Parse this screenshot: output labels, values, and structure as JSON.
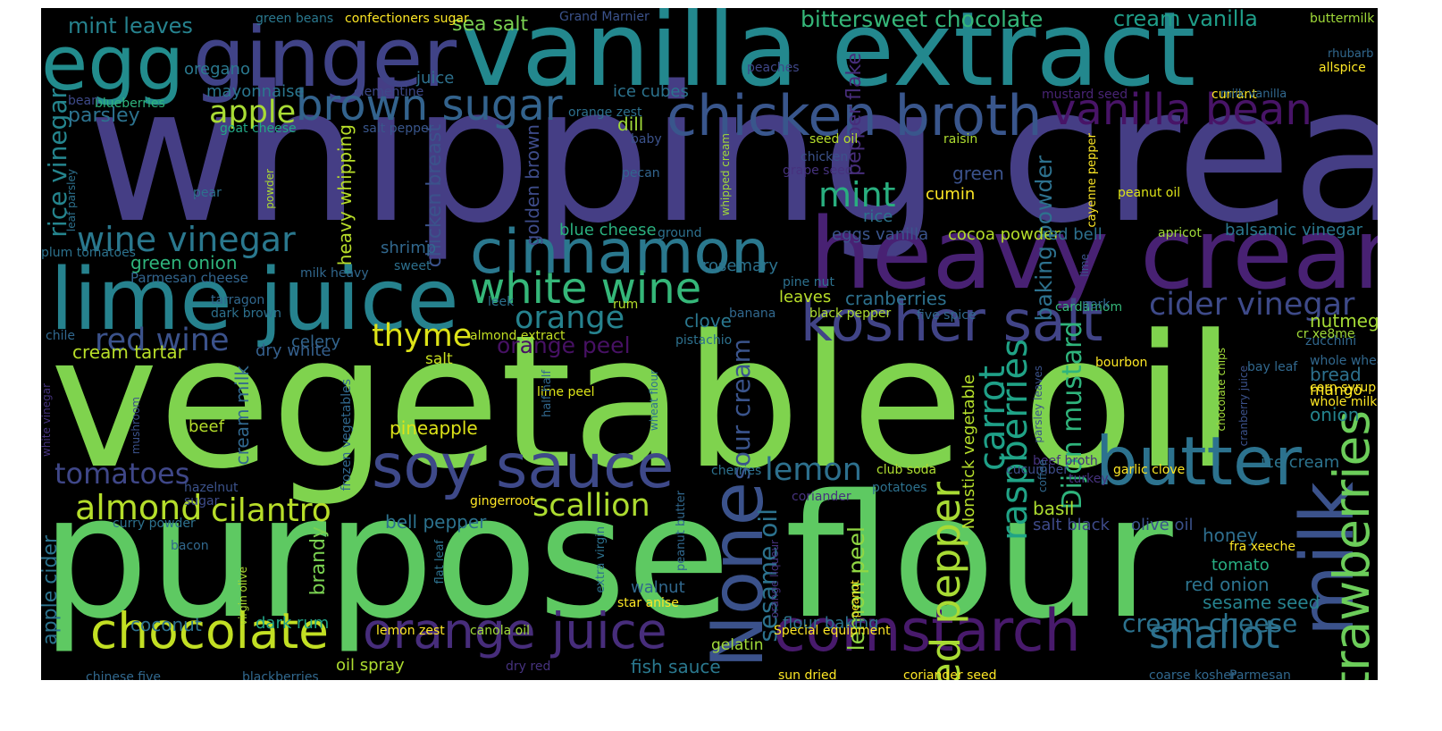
{
  "words": [
    {
      "text": "whipping cream",
      "color": "#453e85",
      "rot": 0
    },
    {
      "text": "vegetable oil",
      "color": "#7fd34e",
      "rot": 0
    },
    {
      "text": "purpose flour",
      "color": "#5ec962",
      "rot": 0
    },
    {
      "text": "vanilla extract",
      "color": "#23888e",
      "rot": 0
    },
    {
      "text": "heavy cream",
      "color": "#482173",
      "rot": 0
    },
    {
      "text": "lime juice",
      "color": "#26828e",
      "rot": 0
    },
    {
      "text": "ginger",
      "color": "#404387",
      "rot": 0
    },
    {
      "text": "egg",
      "color": "#228c8d",
      "rot": 0
    },
    {
      "text": "cinnamon",
      "color": "#2a788e",
      "rot": 0
    },
    {
      "text": "chicken broth",
      "color": "#39568c",
      "rot": 0
    },
    {
      "text": "kosher salt",
      "color": "#414487",
      "rot": 0
    },
    {
      "text": "butter",
      "color": "#2c728e",
      "rot": 0
    },
    {
      "text": "soy sauce",
      "color": "#3e4989",
      "rot": 0
    },
    {
      "text": "white wine",
      "color": "#35b779",
      "rot": 0
    },
    {
      "text": "orange juice",
      "color": "#472d7b",
      "rot": 0
    },
    {
      "text": "cornstarch",
      "color": "#481a6c",
      "rot": 0
    },
    {
      "text": "chocolate",
      "color": "#c2df23",
      "rot": 0
    },
    {
      "text": "brown sugar",
      "color": "#33638d",
      "rot": 0
    },
    {
      "text": "vanilla bean",
      "color": "#481467",
      "rot": 0
    },
    {
      "text": "milk",
      "color": "#3b528b",
      "rot": 90
    },
    {
      "text": "None",
      "color": "#3b528b",
      "rot": 90
    },
    {
      "text": "strawberries",
      "color": "#6ccd5a",
      "rot": 90
    },
    {
      "text": "wine vinegar",
      "color": "#2a788e",
      "rot": 0
    },
    {
      "text": "red wine",
      "color": "#3b528b",
      "rot": 0
    },
    {
      "text": "almond",
      "color": "#b5de2b",
      "rot": 0
    },
    {
      "text": "cilantro",
      "color": "#b8de29",
      "rot": 0
    },
    {
      "text": "scallion",
      "color": "#addc30",
      "rot": 0
    },
    {
      "text": "shallot",
      "color": "#2d708e",
      "rot": 0
    },
    {
      "text": "red pepper",
      "color": "#a8db34",
      "rot": 90
    },
    {
      "text": "raspberries",
      "color": "#20a386",
      "rot": 90
    },
    {
      "text": "apple",
      "color": "#a8db34",
      "rot": 0
    },
    {
      "text": "mint",
      "color": "#29af7f",
      "rot": 0
    },
    {
      "text": "orange",
      "color": "#26828e",
      "rot": 0
    },
    {
      "text": "thyme",
      "color": "#dde318",
      "rot": 0
    },
    {
      "text": "lemon",
      "color": "#2d708e",
      "rot": 0
    },
    {
      "text": "cider vinegar",
      "color": "#3e4a89",
      "rot": 0
    },
    {
      "text": "carrot",
      "color": "#1fa088",
      "rot": 90
    },
    {
      "text": "tomatoes",
      "color": "#3f4788",
      "rot": 0
    },
    {
      "text": "orange peel",
      "color": "#471164",
      "rot": 0
    },
    {
      "text": "sour cream",
      "color": "#3a548c",
      "rot": 90
    },
    {
      "text": "sesame oil",
      "color": "#2c728e",
      "rot": 90
    },
    {
      "text": "lemon peel",
      "color": "#90d743",
      "rot": 90
    },
    {
      "text": "Dijon mustard",
      "color": "#2fb47c",
      "rot": 90
    },
    {
      "text": "baking powder",
      "color": "#2d718e",
      "rot": 90
    },
    {
      "text": "cream cheese",
      "color": "#2c728e",
      "rot": 0
    },
    {
      "text": "bittersweet chocolate",
      "color": "#35b779",
      "rot": 0
    },
    {
      "text": "cream vanilla",
      "color": "#1f9e89",
      "rot": 0
    },
    {
      "text": "mint leaves",
      "color": "#26828e",
      "rot": 0
    },
    {
      "text": "sea salt",
      "color": "#7ad151",
      "rot": 0
    },
    {
      "text": "pepper flake",
      "color": "#472d7b",
      "rot": 90
    },
    {
      "text": "rice vinegar",
      "color": "#25858e",
      "rot": 90
    },
    {
      "text": "chicken breast",
      "color": "#3b528b",
      "rot": 90
    },
    {
      "text": "golden brown",
      "color": "#3e4c8a",
      "rot": 90
    },
    {
      "text": "heavy whipping",
      "color": "#b8de29",
      "rot": 90
    },
    {
      "text": "apple cider",
      "color": "#2c738e",
      "rot": 90
    },
    {
      "text": "brandy",
      "color": "#7ad151",
      "rot": 90
    },
    {
      "text": "cream milk",
      "color": "#31688e",
      "rot": 90
    },
    {
      "text": "parsley",
      "color": "#2c728e",
      "rot": 0
    },
    {
      "text": "dill",
      "color": "#a0da39",
      "rot": 0
    },
    {
      "text": "oregano",
      "color": "#2a788e",
      "rot": 0
    },
    {
      "text": "juice",
      "color": "#2d718e",
      "rot": 0
    },
    {
      "text": "mayonnaise",
      "color": "#2a768e",
      "rot": 0
    },
    {
      "text": "ice cubes",
      "color": "#2c738e",
      "rot": 0
    },
    {
      "text": "green",
      "color": "#3b528b",
      "rot": 0
    },
    {
      "text": "cumin",
      "color": "#fde725",
      "rot": 0
    },
    {
      "text": "rice",
      "color": "#2c738e",
      "rot": 0
    },
    {
      "text": "blue cheese",
      "color": "#2ab07f",
      "rot": 0
    },
    {
      "text": "cocoa powder",
      "color": "#b5de2b",
      "rot": 0
    },
    {
      "text": "eggs vanilla",
      "color": "#3a548c",
      "rot": 0
    },
    {
      "text": "green onion",
      "color": "#2fb47c",
      "rot": 0
    },
    {
      "text": "shrimp",
      "color": "#31688e",
      "rot": 0
    },
    {
      "text": "Parmesan cheese",
      "color": "#32658e",
      "rot": 0
    },
    {
      "text": "rosemary",
      "color": "#2c728e",
      "rot": 0
    },
    {
      "text": "leaves",
      "color": "#b8de29",
      "rot": 0
    },
    {
      "text": "cranberries",
      "color": "#2d718e",
      "rot": 0
    },
    {
      "text": "clove",
      "color": "#2a778e",
      "rot": 0
    },
    {
      "text": "celery",
      "color": "#32658e",
      "rot": 0
    },
    {
      "text": "dry white",
      "color": "#35608d",
      "rot": 0
    },
    {
      "text": "cream tartar",
      "color": "#b8de29",
      "rot": 0
    },
    {
      "text": "salt",
      "color": "#c8e020",
      "rot": 0
    },
    {
      "text": "pineapple",
      "color": "#dde318",
      "rot": 0
    },
    {
      "text": "beef",
      "color": "#b5de2b",
      "rot": 0
    },
    {
      "text": "bell pepper",
      "color": "#2c728e",
      "rot": 0
    },
    {
      "text": "nutmeg",
      "color": "#a5db36",
      "rot": 0
    },
    {
      "text": "bread",
      "color": "#2d718e",
      "rot": 0
    },
    {
      "text": "onion",
      "color": "#25848e",
      "rot": 0
    },
    {
      "text": "mango",
      "color": "#fde725",
      "rot": 0
    },
    {
      "text": "basil",
      "color": "#addc30",
      "rot": 0
    },
    {
      "text": "salt black",
      "color": "#3e4a89",
      "rot": 0
    },
    {
      "text": "olive oil",
      "color": "#3b528b",
      "rot": 0
    },
    {
      "text": "honey",
      "color": "#2e6e8e",
      "rot": 0
    },
    {
      "text": "tomato",
      "color": "#27ad81",
      "rot": 0
    },
    {
      "text": "red onion",
      "color": "#2c738e",
      "rot": 0
    },
    {
      "text": "sesame seed",
      "color": "#26828e",
      "rot": 0
    },
    {
      "text": "red bell",
      "color": "#2d708e",
      "rot": 0
    },
    {
      "text": "balsamic vinegar",
      "color": "#2a788e",
      "rot": 0
    },
    {
      "text": "walnut",
      "color": "#31688e",
      "rot": 0
    },
    {
      "text": "coconut",
      "color": "#2d718e",
      "rot": 0
    },
    {
      "text": "dark rum",
      "color": "#20a386",
      "rot": 0
    },
    {
      "text": "flour baking",
      "color": "#2c738e",
      "rot": 0
    },
    {
      "text": "fish sauce",
      "color": "#2a788e",
      "rot": 0
    },
    {
      "text": "gelatin",
      "color": "#a0da39",
      "rot": 0
    },
    {
      "text": "oil spray",
      "color": "#addc30",
      "rot": 0
    },
    {
      "text": "ice cream",
      "color": "#2c738e",
      "rot": 0
    },
    {
      "text": "Nonstick vegetable",
      "color": "#b5de2b",
      "rot": 90
    },
    {
      "text": "green beans",
      "color": "#2a788e",
      "rot": 0
    },
    {
      "text": "confectioners sugar",
      "color": "#fde725",
      "rot": 0
    },
    {
      "text": "Grand Marnier",
      "color": "#3b528b",
      "rot": 0
    },
    {
      "text": "buttermilk",
      "color": "#a0da39",
      "rot": 0
    },
    {
      "text": "rhubarb",
      "color": "#31688e",
      "rot": 0
    },
    {
      "text": "allspice",
      "color": "#fde725",
      "rot": 0
    },
    {
      "text": "peaches",
      "color": "#3f4788",
      "rot": 0
    },
    {
      "text": "currant",
      "color": "#fde725",
      "rot": 0
    },
    {
      "text": "milk vanilla",
      "color": "#31688e",
      "rot": 0
    },
    {
      "text": "mustard seed",
      "color": "#482475",
      "rot": 0
    },
    {
      "text": "clementine",
      "color": "#3e4989",
      "rot": 0
    },
    {
      "text": "blueberries",
      "color": "#2fb47c",
      "rot": 0
    },
    {
      "text": "bean",
      "color": "#3e4a89",
      "rot": 0
    },
    {
      "text": "orange zest",
      "color": "#2d708e",
      "rot": 0
    },
    {
      "text": "goat cheese",
      "color": "#22a785",
      "rot": 0
    },
    {
      "text": "salt pepper",
      "color": "#39568c",
      "rot": 0
    },
    {
      "text": "baby",
      "color": "#3b528b",
      "rot": 0
    },
    {
      "text": "seed oil",
      "color": "#b5de2b",
      "rot": 0
    },
    {
      "text": "raisin",
      "color": "#addc30",
      "rot": 0
    },
    {
      "text": "chicken",
      "color": "#3b528b",
      "rot": 0
    },
    {
      "text": "grape seed",
      "color": "#46327e",
      "rot": 0
    },
    {
      "text": "pecan",
      "color": "#32658e",
      "rot": 0
    },
    {
      "text": "pear",
      "color": "#2d718e",
      "rot": 0
    },
    {
      "text": "peanut oil",
      "color": "#dde318",
      "rot": 0
    },
    {
      "text": "apricot",
      "color": "#a0da39",
      "rot": 0
    },
    {
      "text": "ground",
      "color": "#2d718e",
      "rot": 0
    },
    {
      "text": "sweet",
      "color": "#2d708e",
      "rot": 0
    },
    {
      "text": "milk heavy",
      "color": "#31688e",
      "rot": 0
    },
    {
      "text": "pine nut",
      "color": "#2d718e",
      "rot": 0
    },
    {
      "text": "plum tomatoes",
      "color": "#2c728e",
      "rot": 0
    },
    {
      "text": "tarragon",
      "color": "#31688e",
      "rot": 0
    },
    {
      "text": "dark brown",
      "color": "#2d718e",
      "rot": 0
    },
    {
      "text": "rum",
      "color": "#b5de2b",
      "rot": 0
    },
    {
      "text": "chile",
      "color": "#31688e",
      "rot": 0
    },
    {
      "text": "leek",
      "color": "#2d718e",
      "rot": 0
    },
    {
      "text": "almond extract",
      "color": "#c2df23",
      "rot": 0
    },
    {
      "text": "banana",
      "color": "#31688e",
      "rot": 0
    },
    {
      "text": "black pepper",
      "color": "#addc30",
      "rot": 0
    },
    {
      "text": "five spice",
      "color": "#31688e",
      "rot": 0
    },
    {
      "text": "cardamom",
      "color": "#35b779",
      "rot": 0
    },
    {
      "text": "pork",
      "color": "#31688e",
      "rot": 0
    },
    {
      "text": "cr xe8me",
      "color": "#a0da39",
      "rot": 0
    },
    {
      "text": "pistachio",
      "color": "#2d718e",
      "rot": 0
    },
    {
      "text": "zucchini",
      "color": "#31688e",
      "rot": 0
    },
    {
      "text": "whole wheat",
      "color": "#31688e",
      "rot": 0
    },
    {
      "text": "bourbon",
      "color": "#fde725",
      "rot": 0
    },
    {
      "text": "bay leaf",
      "color": "#31688e",
      "rot": 0
    },
    {
      "text": "corn syrup",
      "color": "#fde725",
      "rot": 0
    },
    {
      "text": "whole milk",
      "color": "#fde725",
      "rot": 0
    },
    {
      "text": "lime peel",
      "color": "#dde318",
      "rot": 0
    },
    {
      "text": "hazelnut",
      "color": "#3b528b",
      "rot": 0
    },
    {
      "text": "sugar",
      "color": "#3e4c8a",
      "rot": 0
    },
    {
      "text": "cherries",
      "color": "#2d718e",
      "rot": 0
    },
    {
      "text": "gingerroot",
      "color": "#fde725",
      "rot": 0
    },
    {
      "text": "club soda",
      "color": "#addc30",
      "rot": 0
    },
    {
      "text": "potatoes",
      "color": "#2d718e",
      "rot": 0
    },
    {
      "text": "coriander",
      "color": "#46327e",
      "rot": 0
    },
    {
      "text": "cucumber",
      "color": "#3e4c8a",
      "rot": 0
    },
    {
      "text": "beef broth",
      "color": "#46327e",
      "rot": 0
    },
    {
      "text": "turkey",
      "color": "#46327e",
      "rot": 0
    },
    {
      "text": "garlic clove",
      "color": "#fde725",
      "rot": 0
    },
    {
      "text": "curry powder",
      "color": "#2d718e",
      "rot": 0
    },
    {
      "text": "bacon",
      "color": "#31688e",
      "rot": 0
    },
    {
      "text": "star anise",
      "color": "#fde725",
      "rot": 0
    },
    {
      "text": "fra xeeche",
      "color": "#fde725",
      "rot": 0
    },
    {
      "text": "Special equipment",
      "color": "#fde725",
      "rot": 0
    },
    {
      "text": "lemon zest",
      "color": "#fde725",
      "rot": 0
    },
    {
      "text": "canola oil",
      "color": "#a0da39",
      "rot": 0
    },
    {
      "text": "chinese five",
      "color": "#31688e",
      "rot": 0
    },
    {
      "text": "blackberries",
      "color": "#31688e",
      "rot": 0
    },
    {
      "text": "dry red",
      "color": "#46327e",
      "rot": 0
    },
    {
      "text": "sun dried",
      "color": "#fde725",
      "rot": 0
    },
    {
      "text": "coriander seed",
      "color": "#fde725",
      "rot": 0
    },
    {
      "text": "coarse kosher",
      "color": "#31688e",
      "rot": 0
    },
    {
      "text": "Parmesan",
      "color": "#31688e",
      "rot": 0
    },
    {
      "text": "powder",
      "color": "#addc30",
      "rot": 90
    },
    {
      "text": "whipped cream",
      "color": "#a0da39",
      "rot": 90
    },
    {
      "text": "cayenne pepper",
      "color": "#fde725",
      "rot": 90
    },
    {
      "text": "leaf parsley",
      "color": "#2d718e",
      "rot": 90
    },
    {
      "text": "lime",
      "color": "#3b528b",
      "rot": 90
    },
    {
      "text": "chocolate chips",
      "color": "#a0da39",
      "rot": 90
    },
    {
      "text": "cranberry juice",
      "color": "#3b528b",
      "rot": 90
    },
    {
      "text": "white vinegar",
      "color": "#46327e",
      "rot": 90
    },
    {
      "text": "mushroom",
      "color": "#3b528b",
      "rot": 90
    },
    {
      "text": "frozen vegetables",
      "color": "#31688e",
      "rot": 90
    },
    {
      "text": "half half",
      "color": "#31688e",
      "rot": 90
    },
    {
      "text": "wheat flour",
      "color": "#2d718e",
      "rot": 90
    },
    {
      "text": "parsley leaves",
      "color": "#3b528b",
      "rot": 90
    },
    {
      "text": "coffee",
      "color": "#31688e",
      "rot": 90
    },
    {
      "text": "extra virgin",
      "color": "#2d718e",
      "rot": 90
    },
    {
      "text": "virgin olive",
      "color": "#addc30",
      "rot": 90
    },
    {
      "text": "flat leaf",
      "color": "#2d718e",
      "rot": 90
    },
    {
      "text": "peanut butter",
      "color": "#31688e",
      "rot": 90
    },
    {
      "text": "orange liqueur",
      "color": "#46327e",
      "rot": 90
    },
    {
      "text": "peanut",
      "color": "#fde725",
      "rot": 90
    }
  ]
}
